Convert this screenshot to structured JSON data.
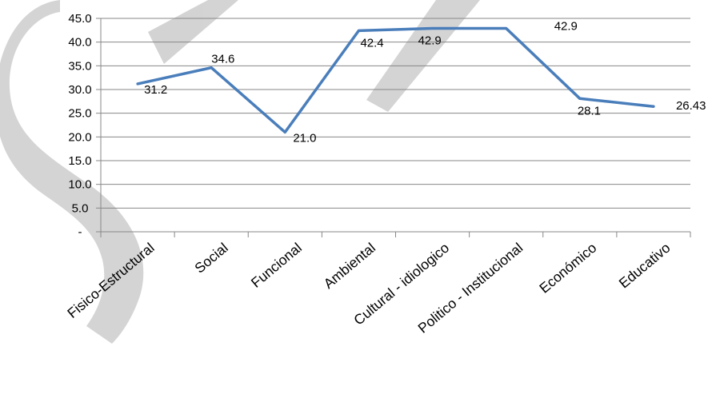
{
  "chart_data": {
    "type": "line",
    "categories": [
      "Fisico-Estructural",
      "Social",
      "Funcional",
      "Ambiental",
      "Cultural - idiologico",
      "Politico - Institucional",
      "Económico",
      "Educativo"
    ],
    "series": [
      {
        "values": [
          31.2,
          34.6,
          21.0,
          42.4,
          42.9,
          42.9,
          28.1,
          26.43
        ],
        "data_labels": [
          "31.2",
          "34.6",
          "21.0",
          "42.4",
          "42.9",
          "42.9",
          "28.1",
          "26.43"
        ],
        "color": "#4a7ebb"
      }
    ],
    "y_ticks": [
      "-",
      "5.0",
      "10.0",
      "15.0",
      "20.0",
      "25.0",
      "30.0",
      "35.0",
      "40.0",
      "45.0"
    ],
    "ylim": [
      0,
      45
    ],
    "grid": true,
    "legend": "none"
  },
  "colors": {
    "line": "#4a7ebb",
    "grid": "#878787",
    "watermark": "#cccccc"
  }
}
